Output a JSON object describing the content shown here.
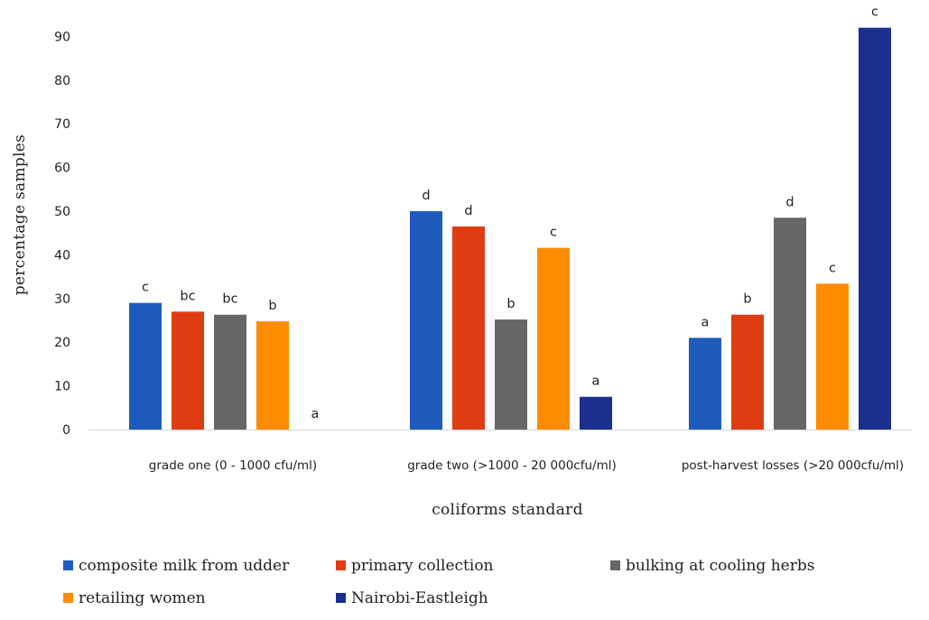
{
  "chart_data": {
    "type": "bar",
    "title": "",
    "xlabel": "coliforms standard",
    "ylabel": "percentage samples",
    "ylim": [
      0,
      95
    ],
    "yticks": [
      0,
      10,
      20,
      30,
      40,
      50,
      60,
      70,
      80,
      90
    ],
    "grid": false,
    "legend_position": "bottom",
    "categories": [
      "grade one (0 - 1000  cfu/ml)",
      "grade two (>1000 - 20 000cfu/ml)",
      "post-harvest losses (>20 000cfu/ml)"
    ],
    "series": [
      {
        "name": "composite milk from udder",
        "color": "#1f5bbd",
        "values": [
          29,
          50,
          21
        ],
        "labels": [
          "c",
          "d",
          "a"
        ]
      },
      {
        "name": "primary collection",
        "color": "#e03c14",
        "values": [
          27,
          46.5,
          26.3
        ],
        "labels": [
          "bc",
          "d",
          "b"
        ]
      },
      {
        "name": "bulking at cooling herbs",
        "color": "#666666",
        "values": [
          26.3,
          25.2,
          48.5
        ],
        "labels": [
          "bc",
          "b",
          "d"
        ]
      },
      {
        "name": "retailing women",
        "color": "#ff8c00",
        "values": [
          24.8,
          41.6,
          33.4
        ],
        "labels": [
          "b",
          "c",
          "c"
        ]
      },
      {
        "name": "Nairobi-Eastleigh",
        "color": "#1b2f8f",
        "values": [
          0,
          7.5,
          92
        ],
        "labels": [
          "a",
          "a",
          "c"
        ]
      }
    ]
  }
}
